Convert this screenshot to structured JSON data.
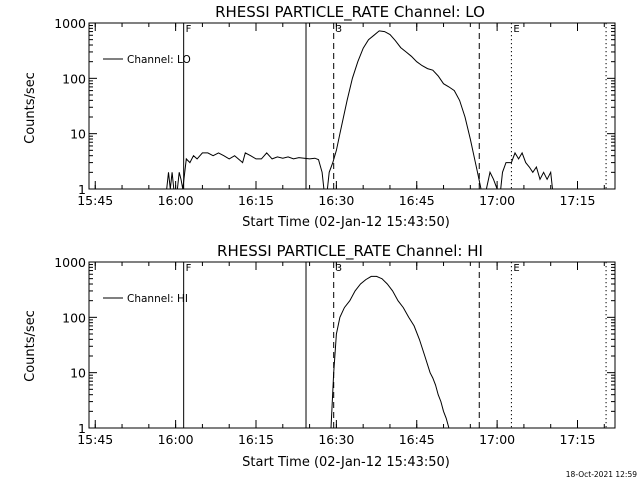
{
  "chart_data": [
    {
      "type": "line",
      "title": "RHESSI PARTICLE_RATE Channel: LO",
      "xlabel": "Start Time (02-Jan-12 15:43:50)",
      "ylabel": "Counts/sec",
      "yscale": "log",
      "ylim": [
        1,
        1000
      ],
      "xlim": [
        "15:43:50",
        "17:22:00"
      ],
      "x_ticks": [
        "15:45",
        "16:00",
        "16:15",
        "16:30",
        "16:45",
        "17:00",
        "17:15"
      ],
      "y_ticks": [
        "1",
        "10",
        "100",
        "1000"
      ],
      "legend": {
        "entries": [
          "Channel: LO"
        ],
        "position": "top-left"
      },
      "markers": [
        {
          "label": "F",
          "time": "16:01:30",
          "style": "solid"
        },
        {
          "label": "",
          "time": "16:24:20",
          "style": "solid"
        },
        {
          "label": "3",
          "time": "16:29:30",
          "style": "dashed"
        },
        {
          "label": "",
          "time": "16:56:40",
          "style": "dashed"
        },
        {
          "label": "E",
          "time": "17:02:40",
          "style": "dotted"
        },
        {
          "label": "",
          "time": "17:20:20",
          "style": "dotted"
        }
      ],
      "series": [
        {
          "name": "Channel: LO",
          "points": [
            [
              "15:58:20",
              1
            ],
            [
              "15:58:40",
              2
            ],
            [
              "15:59:00",
              1
            ],
            [
              "15:59:20",
              2
            ],
            [
              "15:59:40",
              1
            ],
            [
              "16:00:20",
              1
            ],
            [
              "16:00:40",
              2
            ],
            [
              "16:01:00",
              1.5
            ],
            [
              "16:01:20",
              1
            ],
            [
              "16:02:00",
              3.5
            ],
            [
              "16:02:40",
              3
            ],
            [
              "16:03:20",
              4
            ],
            [
              "16:04:00",
              3.5
            ],
            [
              "16:05:00",
              4.5
            ],
            [
              "16:06:00",
              4.5
            ],
            [
              "16:07:00",
              4
            ],
            [
              "16:08:00",
              4.5
            ],
            [
              "16:09:00",
              4
            ],
            [
              "16:10:00",
              3.5
            ],
            [
              "16:11:00",
              4
            ],
            [
              "16:12:00",
              3.3
            ],
            [
              "16:12:30",
              3
            ],
            [
              "16:13:00",
              4.5
            ],
            [
              "16:14:00",
              4
            ],
            [
              "16:15:00",
              3.5
            ],
            [
              "16:16:00",
              3.5
            ],
            [
              "16:17:00",
              4.5
            ],
            [
              "16:18:00",
              3.5
            ],
            [
              "16:19:00",
              3.8
            ],
            [
              "16:20:00",
              3.6
            ],
            [
              "16:21:00",
              3.8
            ],
            [
              "16:22:00",
              3.5
            ],
            [
              "16:23:00",
              3.7
            ],
            [
              "16:24:00",
              3.6
            ],
            [
              "16:25:00",
              3.5
            ],
            [
              "16:26:00",
              3.6
            ],
            [
              "16:26:40",
              3.4
            ],
            [
              "16:27:20",
              2
            ],
            [
              "16:27:40",
              1
            ],
            [
              "16:28:20",
              1
            ],
            [
              "16:28:40",
              2
            ],
            [
              "16:29:20",
              3
            ],
            [
              "16:30:00",
              5
            ],
            [
              "16:30:40",
              10
            ],
            [
              "16:31:20",
              20
            ],
            [
              "16:32:00",
              40
            ],
            [
              "16:33:00",
              100
            ],
            [
              "16:34:00",
              200
            ],
            [
              "16:35:00",
              350
            ],
            [
              "16:36:00",
              500
            ],
            [
              "16:37:00",
              600
            ],
            [
              "16:38:00",
              720
            ],
            [
              "16:39:00",
              700
            ],
            [
              "16:40:00",
              620
            ],
            [
              "16:41:00",
              480
            ],
            [
              "16:42:00",
              360
            ],
            [
              "16:43:00",
              300
            ],
            [
              "16:44:00",
              250
            ],
            [
              "16:45:00",
              200
            ],
            [
              "16:46:00",
              170
            ],
            [
              "16:47:00",
              150
            ],
            [
              "16:48:00",
              140
            ],
            [
              "16:49:00",
              110
            ],
            [
              "16:50:00",
              80
            ],
            [
              "16:51:00",
              70
            ],
            [
              "16:52:00",
              60
            ],
            [
              "16:53:00",
              40
            ],
            [
              "16:54:00",
              20
            ],
            [
              "16:55:00",
              8
            ],
            [
              "16:55:40",
              4
            ],
            [
              "16:56:20",
              2
            ],
            [
              "16:57:00",
              1
            ],
            [
              "16:58:00",
              1
            ],
            [
              "16:58:40",
              2
            ],
            [
              "16:59:20",
              1.5
            ],
            [
              "17:00:00",
              1
            ],
            [
              "17:00:40",
              1
            ],
            [
              "17:01:00",
              2
            ],
            [
              "17:01:40",
              3
            ],
            [
              "17:02:40",
              3
            ],
            [
              "17:03:20",
              4.5
            ],
            [
              "17:04:00",
              3.5
            ],
            [
              "17:04:40",
              4.5
            ],
            [
              "17:05:20",
              3
            ],
            [
              "17:06:00",
              2.5
            ],
            [
              "17:06:40",
              2
            ],
            [
              "17:07:20",
              2.5
            ],
            [
              "17:08:00",
              1.5
            ],
            [
              "17:08:40",
              2
            ],
            [
              "17:09:20",
              1.5
            ],
            [
              "17:10:00",
              2
            ],
            [
              "17:10:20",
              1
            ]
          ]
        }
      ]
    },
    {
      "type": "line",
      "title": "RHESSI PARTICLE_RATE Channel: HI",
      "xlabel": "Start Time (02-Jan-12 15:43:50)",
      "ylabel": "Counts/sec",
      "yscale": "log",
      "ylim": [
        1,
        1000
      ],
      "xlim": [
        "15:43:50",
        "17:22:00"
      ],
      "x_ticks": [
        "15:45",
        "16:00",
        "16:15",
        "16:30",
        "16:45",
        "17:00",
        "17:15"
      ],
      "y_ticks": [
        "1",
        "10",
        "100",
        "1000"
      ],
      "legend": {
        "entries": [
          "Channel: HI"
        ],
        "position": "top-left"
      },
      "markers": [
        {
          "label": "F",
          "time": "16:01:30",
          "style": "solid"
        },
        {
          "label": "",
          "time": "16:24:20",
          "style": "solid"
        },
        {
          "label": "3",
          "time": "16:29:30",
          "style": "dashed"
        },
        {
          "label": "",
          "time": "16:56:40",
          "style": "dashed"
        },
        {
          "label": "E",
          "time": "17:02:40",
          "style": "dotted"
        },
        {
          "label": "",
          "time": "17:20:20",
          "style": "dotted"
        }
      ],
      "series": [
        {
          "name": "Channel: HI",
          "points": [
            [
              "16:29:00",
              1
            ],
            [
              "16:29:30",
              10
            ],
            [
              "16:30:00",
              50
            ],
            [
              "16:30:40",
              100
            ],
            [
              "16:31:30",
              150
            ],
            [
              "16:32:30",
              200
            ],
            [
              "16:33:30",
              300
            ],
            [
              "16:34:30",
              400
            ],
            [
              "16:35:30",
              480
            ],
            [
              "16:36:30",
              550
            ],
            [
              "16:37:30",
              550
            ],
            [
              "16:38:30",
              500
            ],
            [
              "16:39:30",
              400
            ],
            [
              "16:40:30",
              300
            ],
            [
              "16:41:30",
              200
            ],
            [
              "16:42:30",
              150
            ],
            [
              "16:43:30",
              100
            ],
            [
              "16:44:30",
              70
            ],
            [
              "16:45:30",
              40
            ],
            [
              "16:46:30",
              20
            ],
            [
              "16:47:30",
              10
            ],
            [
              "16:48:00",
              8
            ],
            [
              "16:48:30",
              6
            ],
            [
              "16:49:00",
              4
            ],
            [
              "16:49:30",
              3
            ],
            [
              "16:50:00",
              2
            ],
            [
              "16:50:30",
              1.5
            ],
            [
              "16:51:00",
              1
            ]
          ]
        }
      ]
    }
  ],
  "timestamp": "18-Oct-2021 12:59"
}
